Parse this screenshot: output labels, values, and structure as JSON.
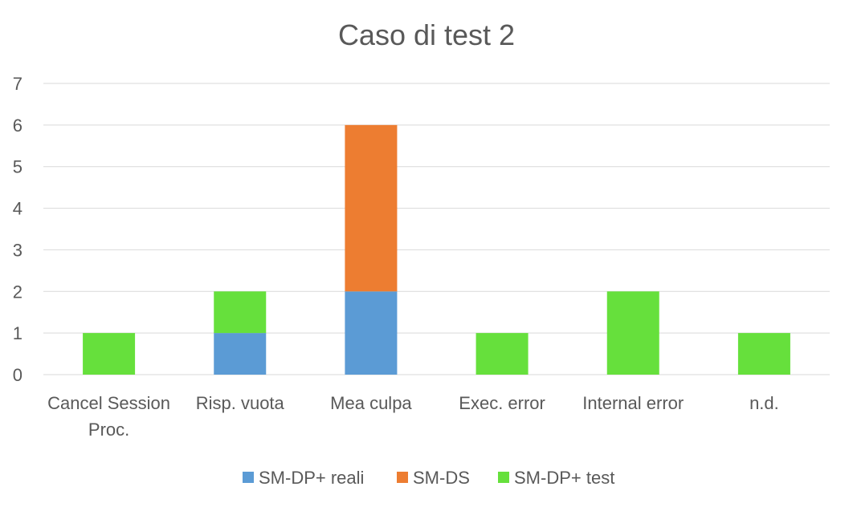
{
  "chart_data": {
    "type": "bar",
    "stacked": true,
    "title": "Caso di test 2",
    "categories": [
      [
        "Cancel Session",
        "Proc."
      ],
      [
        "Risp. vuota"
      ],
      [
        "Mea culpa"
      ],
      [
        "Exec. error"
      ],
      [
        "Internal error"
      ],
      [
        "n.d."
      ]
    ],
    "series": [
      {
        "name": "SM-DP+ reali",
        "color": "#5B9BD5",
        "values": [
          0,
          1,
          2,
          0,
          0,
          0
        ]
      },
      {
        "name": "SM-DS",
        "color": "#ED7D31",
        "values": [
          0,
          0,
          4,
          0,
          0,
          0
        ]
      },
      {
        "name": "SM-DP+ test",
        "color": "#66E03C",
        "values": [
          1,
          1,
          0,
          1,
          2,
          1
        ]
      }
    ],
    "ylim": [
      0,
      7
    ],
    "yticks": [
      0,
      1,
      2,
      3,
      4,
      5,
      6,
      7
    ],
    "grid": true,
    "legend_position": "bottom"
  }
}
